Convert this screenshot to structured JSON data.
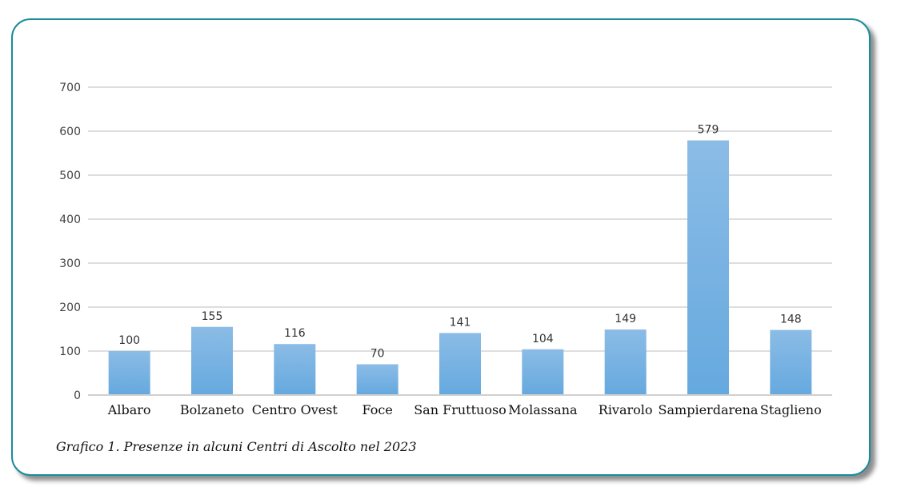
{
  "chart_data": {
    "type": "bar",
    "title": "",
    "categories": [
      "Albaro",
      "Bolzaneto",
      "Centro Ovest",
      "Foce",
      "San Fruttuoso",
      "Molassana",
      "Rivarolo",
      "Sampierdarena",
      "Staglieno"
    ],
    "values": [
      100,
      155,
      116,
      70,
      141,
      104,
      149,
      579,
      148
    ],
    "ylim": [
      0,
      700
    ],
    "yticks": [
      0,
      100,
      200,
      300,
      400,
      500,
      600,
      700
    ],
    "grid": true,
    "bar_color": "#6aaee0",
    "xlabel": "",
    "ylabel": ""
  },
  "caption": "Grafico 1. Presenze in alcuni Centri di Ascolto nel 2023",
  "frame_color": "#1a8c9c"
}
